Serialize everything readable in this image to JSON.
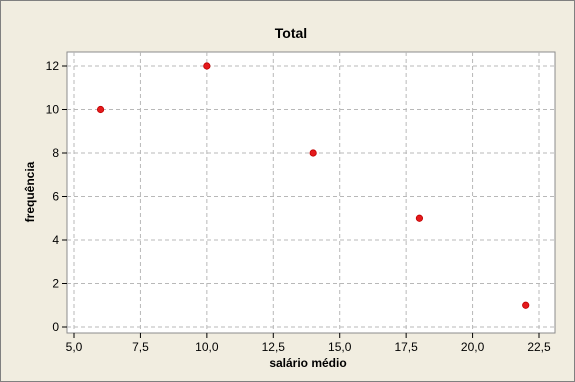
{
  "chart_data": {
    "type": "scatter",
    "title": "Total",
    "xlabel": "salário médio",
    "ylabel": "frequência",
    "xlim": [
      5.0,
      22.5
    ],
    "ylim": [
      0,
      12
    ],
    "x_ticks": [
      "5,0",
      "7,5",
      "10,0",
      "12,5",
      "15,0",
      "17,5",
      "20,0",
      "22,5"
    ],
    "x_tick_values": [
      5.0,
      7.5,
      10.0,
      12.5,
      15.0,
      17.5,
      20.0,
      22.5
    ],
    "y_ticks": [
      "0",
      "2",
      "4",
      "6",
      "8",
      "10",
      "12"
    ],
    "y_tick_values": [
      0,
      2,
      4,
      6,
      8,
      10,
      12
    ],
    "grid": true,
    "points": [
      {
        "x": 6,
        "y": 10
      },
      {
        "x": 10,
        "y": 12
      },
      {
        "x": 14,
        "y": 8
      },
      {
        "x": 18,
        "y": 5
      },
      {
        "x": 22,
        "y": 1
      }
    ],
    "colors": {
      "outer_background": "#f1ede0",
      "plot_background": "#ffffff",
      "marker": "#e41a1c",
      "frame": "#808080"
    }
  }
}
